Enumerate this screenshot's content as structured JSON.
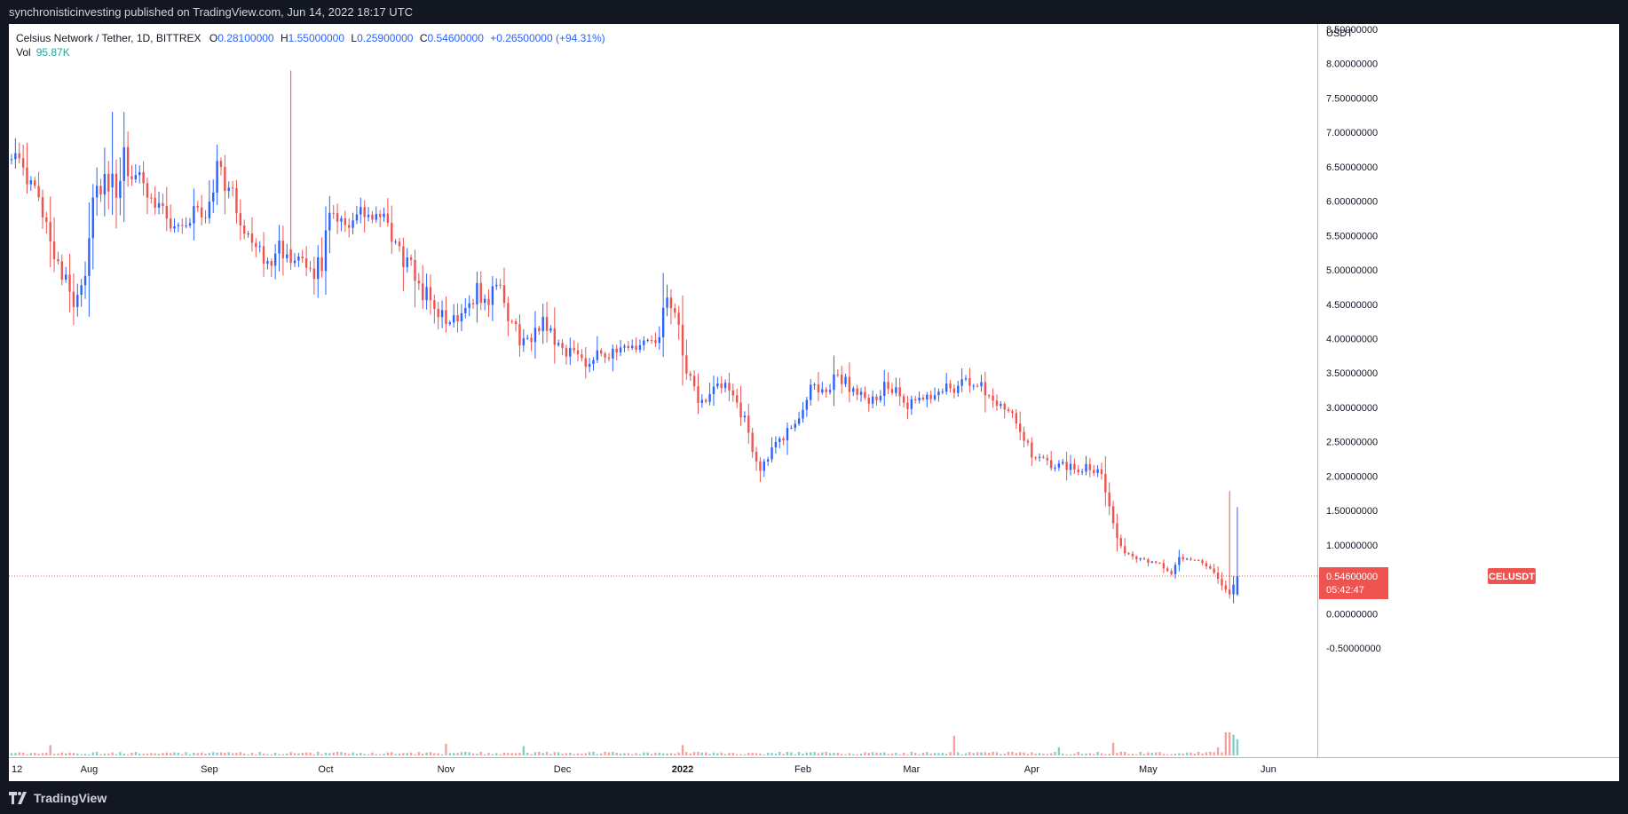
{
  "header": {
    "publisher_line": "synchronisticinvesting published on TradingView.com, Jun 14, 2022 18:17 UTC"
  },
  "legend": {
    "symbol": "Celsius Network / Tether, 1D, BITTREX",
    "open_key": "O",
    "open_val": "0.28100000",
    "high_key": "H",
    "high_val": "1.55000000",
    "low_key": "L",
    "low_val": "0.25900000",
    "close_key": "C",
    "close_val": "0.54600000",
    "change": "+0.26500000 (+94.31%)",
    "vol_key": "Vol",
    "vol_val": "95.87K"
  },
  "price_axis": {
    "unit": "USDT",
    "ticks": [
      "8.50000000",
      "8.00000000",
      "7.50000000",
      "7.00000000",
      "6.50000000",
      "6.00000000",
      "5.50000000",
      "5.00000000",
      "4.50000000",
      "4.00000000",
      "3.50000000",
      "3.00000000",
      "2.50000000",
      "2.00000000",
      "1.50000000",
      "1.00000000",
      "0.00000000",
      "-0.50000000"
    ]
  },
  "last_price": {
    "symbol_tag": "CELUSDT",
    "price": "0.54600000",
    "countdown": "05:42:47"
  },
  "footer": {
    "brand": "TradingView"
  },
  "colors": {
    "up": "#2962ff",
    "down": "#ef5350",
    "vol_up": "#26a69a",
    "vol_down": "#ef5350",
    "background": "#ffffff",
    "frame": "#131722"
  },
  "chart_data": {
    "type": "candlestick",
    "title": "Celsius Network / Tether, 1D, BITTREX",
    "ylabel": "USDT",
    "ylim": [
      -0.6,
      8.6
    ],
    "x_tick_labels": [
      {
        "label": "12",
        "day": 0
      },
      {
        "label": "Aug",
        "day": 20
      },
      {
        "label": "Sep",
        "day": 51
      },
      {
        "label": "Oct",
        "day": 81
      },
      {
        "label": "Nov",
        "day": 112
      },
      {
        "label": "Dec",
        "day": 142
      },
      {
        "label": "2022",
        "day": 173
      },
      {
        "label": "Feb",
        "day": 204
      },
      {
        "label": "Mar",
        "day": 232
      },
      {
        "label": "Apr",
        "day": 263
      },
      {
        "label": "May",
        "day": 293
      },
      {
        "label": "Jun",
        "day": 324
      }
    ],
    "anchors": [
      [
        0,
        6.8
      ],
      [
        2,
        6.45
      ],
      [
        5,
        6.2
      ],
      [
        8,
        5.9
      ],
      [
        11,
        5.3
      ],
      [
        14,
        4.8
      ],
      [
        16,
        4.55
      ],
      [
        19,
        5.0
      ],
      [
        21,
        6.1
      ],
      [
        24,
        6.3
      ],
      [
        26,
        5.8
      ],
      [
        29,
        6.6
      ],
      [
        32,
        6.3
      ],
      [
        35,
        6.15
      ],
      [
        38,
        6.0
      ],
      [
        41,
        5.7
      ],
      [
        44,
        5.6
      ],
      [
        47,
        5.85
      ],
      [
        50,
        5.8
      ],
      [
        53,
        6.5
      ],
      [
        56,
        6.2
      ],
      [
        59,
        5.7
      ],
      [
        62,
        5.5
      ],
      [
        64,
        5.2
      ],
      [
        66,
        5.05
      ],
      [
        69,
        5.5
      ],
      [
        71,
        5.1
      ],
      [
        74,
        5.05
      ],
      [
        77,
        5.0
      ],
      [
        80,
        5.05
      ],
      [
        82,
        5.95
      ],
      [
        85,
        5.75
      ],
      [
        88,
        5.7
      ],
      [
        91,
        5.8
      ],
      [
        94,
        5.75
      ],
      [
        97,
        5.6
      ],
      [
        100,
        5.25
      ],
      [
        103,
        5.0
      ],
      [
        106,
        4.7
      ],
      [
        109,
        4.5
      ],
      [
        112,
        4.2
      ],
      [
        115,
        4.35
      ],
      [
        117,
        4.5
      ],
      [
        120,
        4.7
      ],
      [
        122,
        4.5
      ],
      [
        125,
        4.8
      ],
      [
        128,
        4.35
      ],
      [
        131,
        4.0
      ],
      [
        134,
        3.95
      ],
      [
        137,
        4.3
      ],
      [
        140,
        4.0
      ],
      [
        142,
        3.85
      ],
      [
        145,
        3.8
      ],
      [
        148,
        3.65
      ],
      [
        151,
        3.85
      ],
      [
        154,
        3.75
      ],
      [
        157,
        3.8
      ],
      [
        160,
        3.85
      ],
      [
        163,
        3.95
      ],
      [
        166,
        3.85
      ],
      [
        169,
        4.6
      ],
      [
        172,
        4.1
      ],
      [
        174,
        3.5
      ],
      [
        177,
        3.1
      ],
      [
        180,
        3.2
      ],
      [
        183,
        3.3
      ],
      [
        186,
        3.2
      ],
      [
        189,
        2.8
      ],
      [
        191,
        2.4
      ],
      [
        193,
        2.1
      ],
      [
        195,
        2.3
      ],
      [
        198,
        2.5
      ],
      [
        201,
        2.7
      ],
      [
        204,
        3.0
      ],
      [
        207,
        3.35
      ],
      [
        210,
        3.2
      ],
      [
        213,
        3.5
      ],
      [
        216,
        3.3
      ],
      [
        219,
        3.15
      ],
      [
        222,
        3.1
      ],
      [
        225,
        3.3
      ],
      [
        228,
        3.2
      ],
      [
        231,
        3.0
      ],
      [
        234,
        3.1
      ],
      [
        237,
        3.15
      ],
      [
        240,
        3.3
      ],
      [
        243,
        3.3
      ],
      [
        246,
        3.35
      ],
      [
        249,
        3.35
      ],
      [
        252,
        3.2
      ],
      [
        255,
        3.05
      ],
      [
        258,
        2.95
      ],
      [
        261,
        2.55
      ],
      [
        263,
        2.3
      ],
      [
        266,
        2.2
      ],
      [
        269,
        2.15
      ],
      [
        272,
        2.15
      ],
      [
        275,
        2.1
      ],
      [
        278,
        2.15
      ],
      [
        281,
        2.0
      ],
      [
        283,
        1.6
      ],
      [
        285,
        1.1
      ],
      [
        287,
        0.9
      ],
      [
        290,
        0.8
      ],
      [
        293,
        0.75
      ],
      [
        296,
        0.72
      ],
      [
        299,
        0.58
      ],
      [
        301,
        0.8
      ],
      [
        304,
        0.8
      ],
      [
        307,
        0.75
      ],
      [
        310,
        0.6
      ],
      [
        312,
        0.4
      ],
      [
        314,
        0.3
      ],
      [
        316,
        0.546
      ]
    ],
    "spike_candles": [
      {
        "day": 72,
        "open": 5.3,
        "high": 7.9,
        "low": 5.0,
        "close": 5.1
      },
      {
        "day": 26,
        "open": 6.2,
        "high": 7.3,
        "low": 5.8,
        "close": 6.4
      },
      {
        "day": 314,
        "open": 0.35,
        "high": 1.78,
        "low": 0.22,
        "close": 0.28
      },
      {
        "day": 316,
        "open": 0.281,
        "high": 1.55,
        "low": 0.259,
        "close": 0.546
      }
    ],
    "volume_spikes": [
      {
        "day": 10,
        "value": 0.45
      },
      {
        "day": 112,
        "value": 0.5
      },
      {
        "day": 132,
        "value": 0.4
      },
      {
        "day": 173,
        "value": 0.45
      },
      {
        "day": 243,
        "value": 0.85
      },
      {
        "day": 270,
        "value": 0.35
      },
      {
        "day": 284,
        "value": 0.55
      },
      {
        "day": 311,
        "value": 0.35
      },
      {
        "day": 313,
        "value": 1.0
      },
      {
        "day": 314,
        "value": 1.0
      },
      {
        "day": 315,
        "value": 0.9
      },
      {
        "day": 316,
        "value": 0.7
      }
    ],
    "last_price": 0.546
  }
}
